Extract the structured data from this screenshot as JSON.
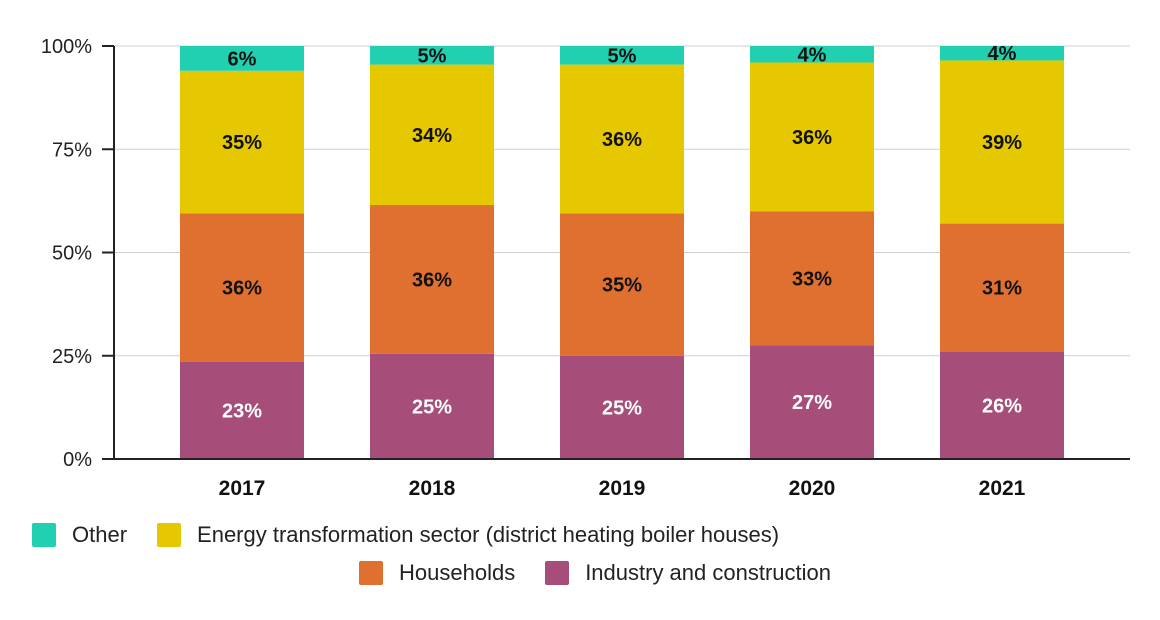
{
  "chart_data": {
    "type": "bar",
    "stacked": true,
    "categories": [
      "2017",
      "2018",
      "2019",
      "2020",
      "2021"
    ],
    "series": [
      {
        "name": "Industry and construction",
        "color": "#a64d79",
        "label_color": "#ffffff",
        "values": [
          23.5,
          25.5,
          25,
          27.5,
          26
        ],
        "labels": [
          "23%",
          "25%",
          "25%",
          "27%",
          "26%"
        ]
      },
      {
        "name": "Households",
        "color": "#e07030",
        "label_color": "#111111",
        "values": [
          36,
          36,
          34.5,
          32.5,
          31
        ],
        "labels": [
          "36%",
          "36%",
          "35%",
          "33%",
          "31%"
        ]
      },
      {
        "name": "Energy transformation sector (district heating boiler houses)",
        "color": "#e6c800",
        "label_color": "#111111",
        "values": [
          34.5,
          34,
          36,
          36,
          39.5
        ],
        "labels": [
          "35%",
          "34%",
          "36%",
          "36%",
          "39%"
        ]
      },
      {
        "name": "Other",
        "color": "#20d0b0",
        "label_color": "#111111",
        "values": [
          6,
          4.5,
          4.5,
          4,
          3.5
        ],
        "labels": [
          "6%",
          "5%",
          "5%",
          "4%",
          "4%"
        ]
      }
    ],
    "y_ticks": [
      "0%",
      "25%",
      "50%",
      "75%",
      "100%"
    ],
    "ylim": [
      0,
      100
    ],
    "grid": true,
    "legend_position": "bottom",
    "title": "",
    "xlabel": "",
    "ylabel": ""
  },
  "legend": {
    "row1": [
      {
        "label": "Other",
        "color": "#20d0b0"
      },
      {
        "label": "Energy transformation sector (district heating boiler houses)",
        "color": "#e6c800"
      }
    ],
    "row2": [
      {
        "label": "Households",
        "color": "#e07030"
      },
      {
        "label": "Industry and construction",
        "color": "#a64d79"
      }
    ]
  }
}
